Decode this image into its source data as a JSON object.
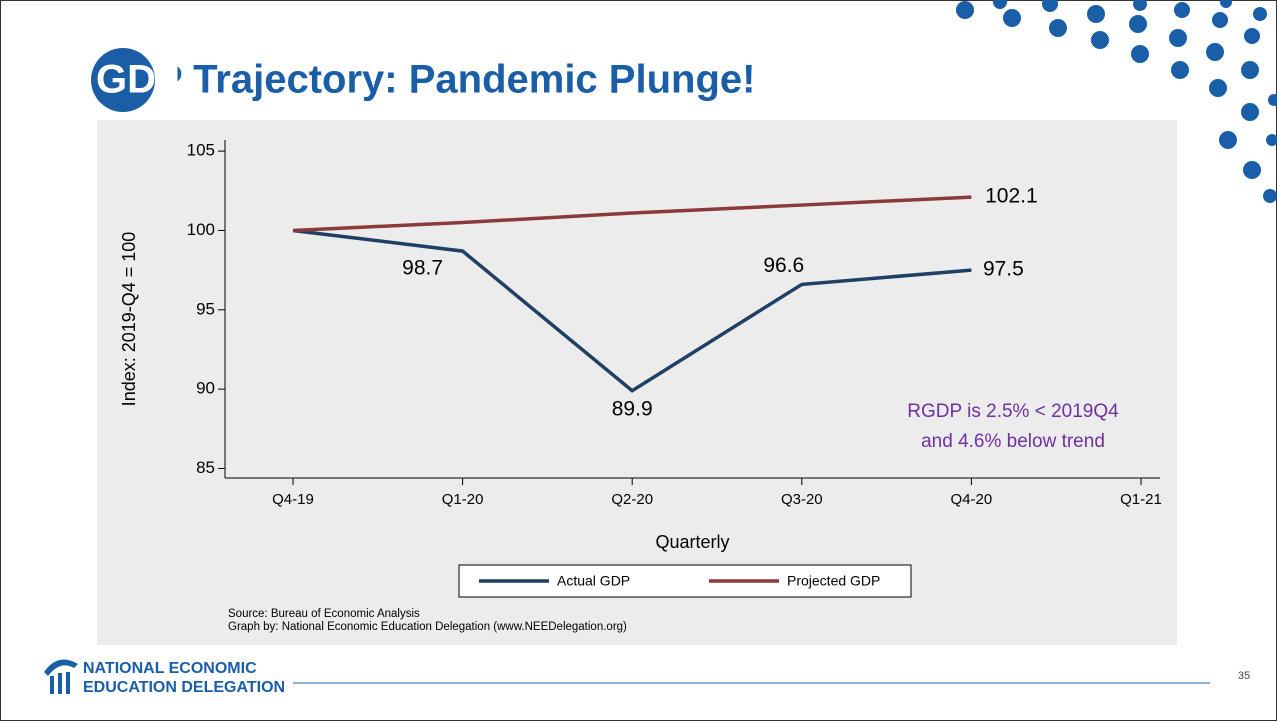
{
  "slide": {
    "title": "GDP Trajectory: Pandemic Plunge!",
    "footer": {
      "org_lines": [
        "NATIONAL ECONOMIC",
        "EDUCATION DELEGATION"
      ],
      "page_number": "35"
    }
  },
  "chart_data": {
    "type": "line",
    "y_label": "Index: 2019-Q4 = 100",
    "x_label": "Quarterly",
    "categories": [
      "Q4-19",
      "Q1-20",
      "Q2-20",
      "Q3-20",
      "Q4-20",
      "Q1-21"
    ],
    "series": [
      {
        "name": "Actual GDP",
        "color": "#1f3f64",
        "values": [
          100,
          98.7,
          89.9,
          96.6,
          97.5,
          null
        ],
        "value_labels": [
          null,
          "98.7",
          "89.9",
          "96.6",
          "97.5",
          null
        ]
      },
      {
        "name": "Projected GDP",
        "color": "#8b3a3a",
        "values": [
          100,
          100.5,
          101.1,
          101.6,
          102.1,
          null
        ],
        "value_labels": [
          null,
          null,
          null,
          null,
          "102.1",
          null
        ]
      }
    ],
    "ylim": [
      84.4,
      105.7
    ],
    "yticks": [
      85,
      90,
      95,
      100,
      105
    ],
    "grid": false,
    "legend": "bottom",
    "annotation": [
      "RGDP is 2.5% < 2019Q4",
      "and 4.6% below trend"
    ],
    "annotation_color": "#7030a0",
    "source": [
      "Source: Bureau of Economic Analysis",
      "Graph by: National Economic Education Delegation (www.NEEDelegation.org)"
    ]
  }
}
